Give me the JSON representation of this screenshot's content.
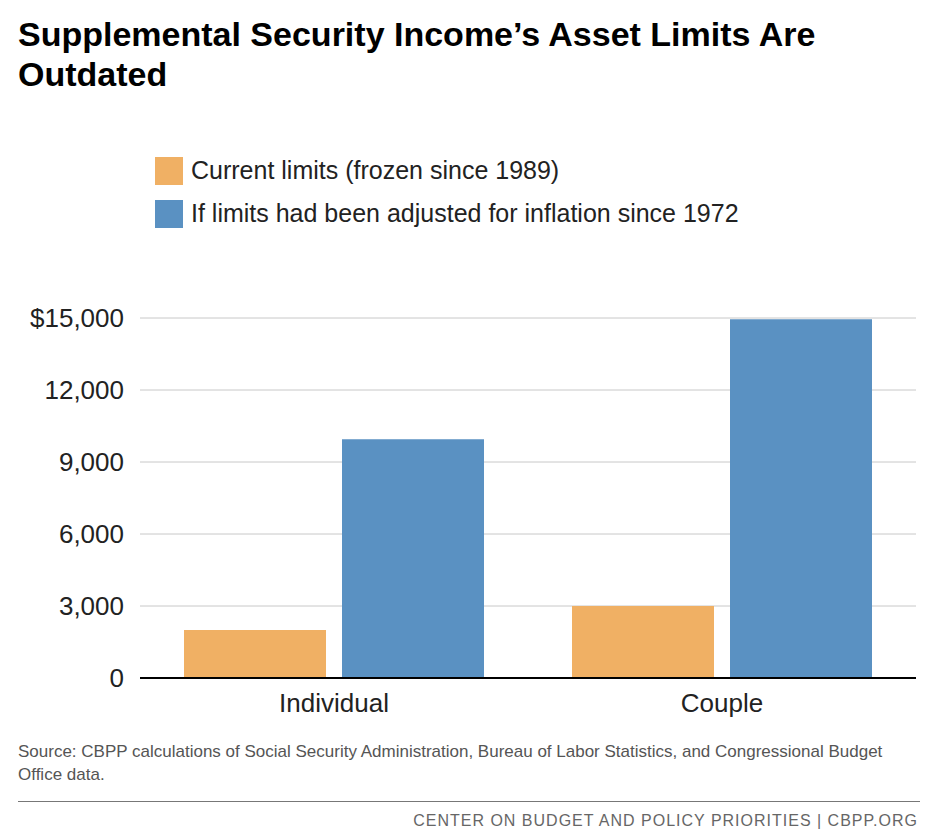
{
  "chart_data": {
    "type": "bar",
    "title": "Supplemental Security Income’s Asset Limits Are Outdated",
    "categories": [
      "Individual",
      "Couple"
    ],
    "series": [
      {
        "name": "Current limits (frozen since 1989)",
        "color": "#f0b064",
        "values": [
          2000,
          3000
        ]
      },
      {
        "name": "If limits had been adjusted for inflation since 1972",
        "color": "#5a91c2",
        "values": [
          9950,
          14950
        ]
      }
    ],
    "ylim": [
      0,
      15000
    ],
    "yticks": [
      0,
      {
        "value": 3000,
        "label": "3,000"
      },
      {
        "value": 6000,
        "label": "6,000"
      },
      {
        "value": 9000,
        "label": "9,000"
      },
      {
        "value": 12000,
        "label": "12,000"
      },
      {
        "value": 15000,
        "label": "$15,000"
      }
    ],
    "grid": true,
    "legend": "top-left",
    "source": "Source: CBPP calculations of Social Security Administration, Bureau of Labor Statistics, and Congressional Budget Office data.",
    "footer": "CENTER ON BUDGET AND POLICY PRIORITIES | CBPP.ORG"
  }
}
